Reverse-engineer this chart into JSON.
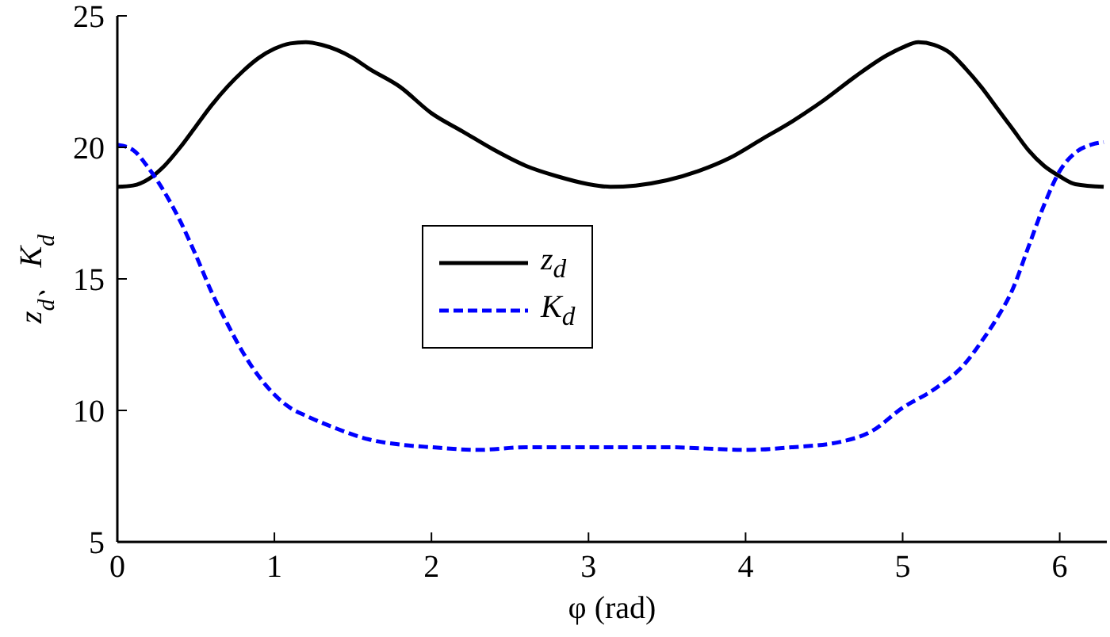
{
  "chart_data": {
    "type": "line",
    "xlabel": "φ (rad)",
    "ylabel": "z$_{d}$、K$_{d}$",
    "xlim": [
      0,
      6.3
    ],
    "xticks": [
      0,
      1,
      2,
      3,
      4,
      5,
      6
    ],
    "ylim": [
      5,
      25
    ],
    "yticks": [
      5,
      10,
      15,
      20,
      25
    ],
    "grid": false,
    "legend": "center",
    "marker": "none",
    "series": [
      {
        "name": "z$_{d}$",
        "color": "#000000",
        "line_style": "solid",
        "x": [
          0,
          0.1,
          0.2,
          0.3,
          0.4,
          0.5,
          0.6,
          0.7,
          0.8,
          0.9,
          1.0,
          1.1,
          1.2,
          1.3,
          1.4,
          1.5,
          1.6,
          1.8,
          2.0,
          2.2,
          2.4,
          2.6,
          2.8,
          3.0,
          3.14,
          3.3,
          3.5,
          3.7,
          3.9,
          4.1,
          4.3,
          4.5,
          4.7,
          4.9,
          5.0,
          5.1,
          5.2,
          5.3,
          5.4,
          5.5,
          5.6,
          5.7,
          5.8,
          5.9,
          6.0,
          6.1,
          6.28
        ],
        "values": [
          18.5,
          18.55,
          18.8,
          19.3,
          20.0,
          20.8,
          21.6,
          22.3,
          22.9,
          23.4,
          23.75,
          23.95,
          24.0,
          23.9,
          23.7,
          23.4,
          23.0,
          22.3,
          21.3,
          20.6,
          19.9,
          19.3,
          18.9,
          18.6,
          18.5,
          18.55,
          18.75,
          19.1,
          19.6,
          20.3,
          21.0,
          21.8,
          22.7,
          23.5,
          23.8,
          24.0,
          23.9,
          23.6,
          23.0,
          22.3,
          21.5,
          20.7,
          19.9,
          19.3,
          18.9,
          18.6,
          18.5
        ]
      },
      {
        "name": "K$_{d}$",
        "color": "#0000ff",
        "line_style": "dashed",
        "x": [
          0,
          0.1,
          0.2,
          0.3,
          0.4,
          0.5,
          0.6,
          0.7,
          0.8,
          0.9,
          1.0,
          1.1,
          1.2,
          1.4,
          1.6,
          1.8,
          2.0,
          2.3,
          2.6,
          3.0,
          3.5,
          4.0,
          4.3,
          4.6,
          4.8,
          5.0,
          5.2,
          5.4,
          5.5,
          5.6,
          5.7,
          5.8,
          5.9,
          6.0,
          6.1,
          6.2,
          6.28
        ],
        "values": [
          20.1,
          19.9,
          19.2,
          18.3,
          17.2,
          15.9,
          14.5,
          13.3,
          12.2,
          11.3,
          10.6,
          10.1,
          9.8,
          9.3,
          8.9,
          8.7,
          8.6,
          8.5,
          8.6,
          8.6,
          8.6,
          8.5,
          8.6,
          8.8,
          9.2,
          10.1,
          10.8,
          11.8,
          12.6,
          13.5,
          14.6,
          16.2,
          17.8,
          19.1,
          19.8,
          20.1,
          20.2
        ]
      }
    ]
  }
}
